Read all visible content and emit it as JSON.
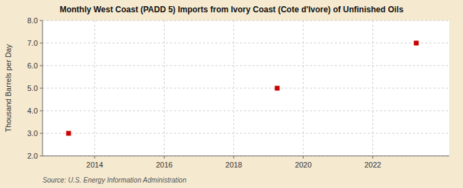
{
  "chart_data": {
    "type": "scatter",
    "title": "Monthly West Coast (PADD 5) Imports from Ivory Coast (Cote d'Ivore) of Unfinished Oils",
    "ylabel": "Thousand Barrels per Day",
    "source": "Source: U.S. Energy Information Administration",
    "x": [
      2013.25,
      2019.25,
      2023.25
    ],
    "values": [
      3.0,
      5.0,
      7.0
    ],
    "color": "#cc0000",
    "marker": "square",
    "xlim": [
      2012.5,
      2024.2
    ],
    "ylim": [
      2.0,
      8.0
    ],
    "xticks": [
      2014,
      2016,
      2018,
      2020,
      2022
    ],
    "yticks": [
      {
        "value": 2.0,
        "label": "2.0"
      },
      {
        "value": 3.0,
        "label": "3.0"
      },
      {
        "value": 4.0,
        "label": "4.0"
      },
      {
        "value": 5.0,
        "label": "5.0"
      },
      {
        "value": 6.0,
        "label": "6.0"
      },
      {
        "value": 7.0,
        "label": "7.0"
      },
      {
        "value": 8.0,
        "label": "8.0"
      }
    ],
    "grid": true
  }
}
